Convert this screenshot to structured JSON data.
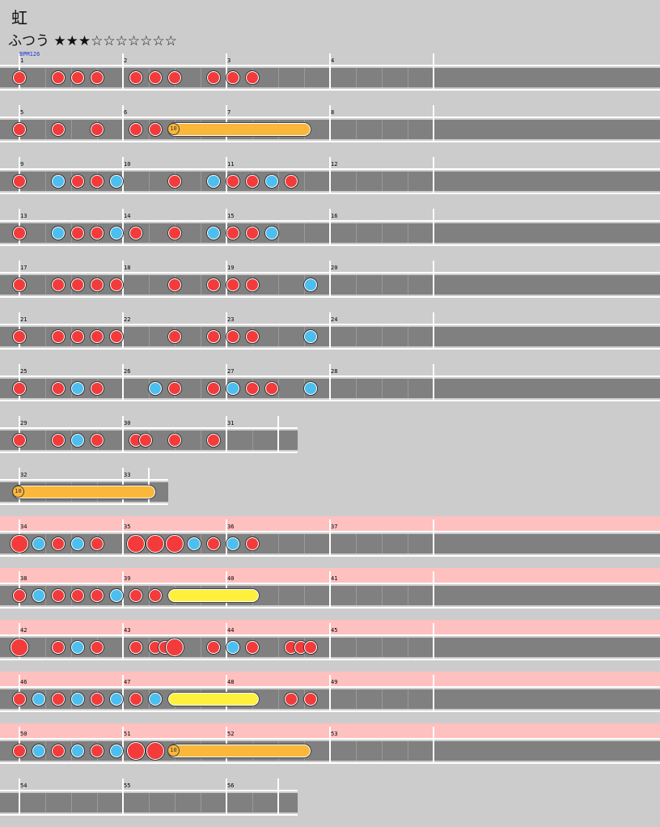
{
  "song": {
    "title": "虹",
    "difficulty_label": "ふつう",
    "stars_filled": "★★★",
    "stars_empty": "☆☆☆☆☆☆☆",
    "level": 3,
    "level_max": 10,
    "bpm_label": "BPM126"
  },
  "colors": {
    "background": "#cccccc",
    "lane": "#808080",
    "gogo": "#ffc0c0",
    "don": "#f33b3b",
    "ka": "#4cbff0",
    "balloon": "#fbb73a",
    "drumroll": "#fff03d"
  },
  "chart_data": {
    "type": "rhythm-chart",
    "rows": [
      {
        "measures": [
          1,
          2,
          3,
          4
        ],
        "beats": [
          16,
          16,
          16,
          16
        ],
        "gogo": false,
        "notes": [
          [
            0,
            "d"
          ],
          [
            6,
            "d"
          ],
          [
            9,
            "d"
          ],
          [
            12,
            "d"
          ],
          [
            18,
            "d"
          ],
          [
            21,
            "d"
          ],
          [
            24,
            "d"
          ],
          [
            30,
            "d"
          ],
          [
            33,
            "d"
          ],
          [
            36,
            "d"
          ]
        ],
        "rolls": []
      },
      {
        "measures": [
          5,
          6,
          7,
          8
        ],
        "beats": [
          16,
          16,
          16,
          16
        ],
        "gogo": false,
        "notes": [
          [
            0,
            "d"
          ],
          [
            6,
            "d"
          ],
          [
            12,
            "d"
          ],
          [
            18,
            "d"
          ],
          [
            21,
            "d"
          ]
        ],
        "rolls": [
          {
            "start": 24,
            "end": 44,
            "kind": "balloon",
            "count": "10"
          }
        ]
      },
      {
        "measures": [
          9,
          10,
          11,
          12
        ],
        "beats": [
          16,
          16,
          16,
          16
        ],
        "gogo": false,
        "notes": [
          [
            0,
            "d"
          ],
          [
            6,
            "k"
          ],
          [
            9,
            "d"
          ],
          [
            12,
            "d"
          ],
          [
            15,
            "k"
          ],
          [
            24,
            "d"
          ],
          [
            30,
            "k"
          ],
          [
            33,
            "d"
          ],
          [
            36,
            "d"
          ],
          [
            39,
            "k"
          ],
          [
            42,
            "d"
          ]
        ],
        "rolls": []
      },
      {
        "measures": [
          13,
          14,
          15,
          16
        ],
        "beats": [
          16,
          16,
          16,
          16
        ],
        "gogo": false,
        "notes": [
          [
            0,
            "d"
          ],
          [
            6,
            "k"
          ],
          [
            9,
            "d"
          ],
          [
            12,
            "d"
          ],
          [
            15,
            "k"
          ],
          [
            18,
            "d"
          ],
          [
            24,
            "d"
          ],
          [
            30,
            "k"
          ],
          [
            33,
            "d"
          ],
          [
            36,
            "d"
          ],
          [
            39,
            "k"
          ]
        ],
        "rolls": []
      },
      {
        "measures": [
          17,
          18,
          19,
          20
        ],
        "beats": [
          16,
          16,
          16,
          16
        ],
        "gogo": false,
        "notes": [
          [
            0,
            "d"
          ],
          [
            6,
            "d"
          ],
          [
            9,
            "d"
          ],
          [
            12,
            "d"
          ],
          [
            15,
            "d"
          ],
          [
            24,
            "d"
          ],
          [
            30,
            "d"
          ],
          [
            33,
            "d"
          ],
          [
            36,
            "d"
          ],
          [
            45,
            "k"
          ]
        ],
        "rolls": []
      },
      {
        "measures": [
          21,
          22,
          23,
          24
        ],
        "beats": [
          16,
          16,
          16,
          16
        ],
        "gogo": false,
        "notes": [
          [
            0,
            "d"
          ],
          [
            6,
            "d"
          ],
          [
            9,
            "d"
          ],
          [
            12,
            "d"
          ],
          [
            15,
            "d"
          ],
          [
            24,
            "d"
          ],
          [
            30,
            "d"
          ],
          [
            33,
            "d"
          ],
          [
            36,
            "d"
          ],
          [
            45,
            "k"
          ]
        ],
        "rolls": []
      },
      {
        "measures": [
          25,
          26,
          27,
          28
        ],
        "beats": [
          16,
          16,
          16,
          16
        ],
        "gogo": false,
        "notes": [
          [
            0,
            "d"
          ],
          [
            6,
            "d"
          ],
          [
            9,
            "k"
          ],
          [
            12,
            "d"
          ],
          [
            21,
            "k"
          ],
          [
            24,
            "d"
          ],
          [
            30,
            "d"
          ],
          [
            33,
            "k"
          ],
          [
            36,
            "d"
          ],
          [
            39,
            "d"
          ],
          [
            45,
            "k"
          ]
        ],
        "rolls": []
      },
      {
        "measures": [
          29,
          30,
          31
        ],
        "beats": [
          16,
          16,
          8
        ],
        "gogo": false,
        "notes": [
          [
            0,
            "d"
          ],
          [
            6,
            "d"
          ],
          [
            9,
            "k"
          ],
          [
            12,
            "d"
          ],
          [
            18,
            "d"
          ],
          [
            19.5,
            "d"
          ],
          [
            24,
            "d"
          ],
          [
            30,
            "d"
          ]
        ],
        "rolls": []
      },
      {
        "measures": [
          32,
          33
        ],
        "beats": [
          16,
          4
        ],
        "gogo": false,
        "notes": [],
        "rolls": [
          {
            "start": 0,
            "end": 20,
            "kind": "balloon",
            "count": "10"
          }
        ]
      },
      {
        "measures": [
          34,
          35,
          36,
          37
        ],
        "beats": [
          16,
          16,
          16,
          16
        ],
        "gogo": true,
        "notes": [
          [
            0,
            "D"
          ],
          [
            3,
            "k"
          ],
          [
            6,
            "d"
          ],
          [
            9,
            "k"
          ],
          [
            12,
            "d"
          ],
          [
            18,
            "D"
          ],
          [
            21,
            "D"
          ],
          [
            24,
            "D"
          ],
          [
            27,
            "k"
          ],
          [
            30,
            "d"
          ],
          [
            33,
            "k"
          ],
          [
            36,
            "d"
          ]
        ],
        "rolls": []
      },
      {
        "measures": [
          38,
          39,
          40,
          41
        ],
        "beats": [
          16,
          16,
          16,
          16
        ],
        "gogo": true,
        "notes": [
          [
            0,
            "d"
          ],
          [
            3,
            "k"
          ],
          [
            6,
            "d"
          ],
          [
            9,
            "d"
          ],
          [
            12,
            "d"
          ],
          [
            15,
            "k"
          ],
          [
            18,
            "d"
          ],
          [
            21,
            "d"
          ]
        ],
        "rolls": [
          {
            "start": 24,
            "end": 36,
            "kind": "drumroll",
            "count": ""
          }
        ]
      },
      {
        "measures": [
          42,
          43,
          44,
          45
        ],
        "beats": [
          16,
          16,
          16,
          16
        ],
        "gogo": true,
        "notes": [
          [
            0,
            "D"
          ],
          [
            6,
            "d"
          ],
          [
            9,
            "k"
          ],
          [
            12,
            "d"
          ],
          [
            18,
            "d"
          ],
          [
            21,
            "d"
          ],
          [
            22.5,
            "d"
          ],
          [
            24,
            "D"
          ],
          [
            30,
            "d"
          ],
          [
            33,
            "k"
          ],
          [
            36,
            "d"
          ],
          [
            42,
            "d"
          ],
          [
            43.5,
            "d"
          ],
          [
            45,
            "d"
          ]
        ],
        "rolls": []
      },
      {
        "measures": [
          46,
          47,
          48,
          49
        ],
        "beats": [
          16,
          16,
          16,
          16
        ],
        "gogo": true,
        "notes": [
          [
            0,
            "d"
          ],
          [
            3,
            "k"
          ],
          [
            6,
            "d"
          ],
          [
            9,
            "k"
          ],
          [
            12,
            "d"
          ],
          [
            15,
            "k"
          ],
          [
            18,
            "d"
          ],
          [
            21,
            "k"
          ],
          [
            42,
            "d"
          ],
          [
            45,
            "d"
          ]
        ],
        "rolls": [
          {
            "start": 24,
            "end": 36,
            "kind": "drumroll",
            "count": ""
          }
        ]
      },
      {
        "measures": [
          50,
          51,
          52,
          53
        ],
        "beats": [
          16,
          16,
          16,
          16
        ],
        "gogo": true,
        "notes": [
          [
            0,
            "d"
          ],
          [
            3,
            "k"
          ],
          [
            6,
            "d"
          ],
          [
            9,
            "k"
          ],
          [
            12,
            "d"
          ],
          [
            15,
            "k"
          ],
          [
            18,
            "D"
          ],
          [
            21,
            "D"
          ]
        ],
        "rolls": [
          {
            "start": 24,
            "end": 44,
            "kind": "balloon",
            "count": "10"
          }
        ]
      },
      {
        "measures": [
          54,
          55,
          56
        ],
        "beats": [
          16,
          16,
          8
        ],
        "gogo": false,
        "notes": [],
        "rolls": []
      }
    ]
  }
}
